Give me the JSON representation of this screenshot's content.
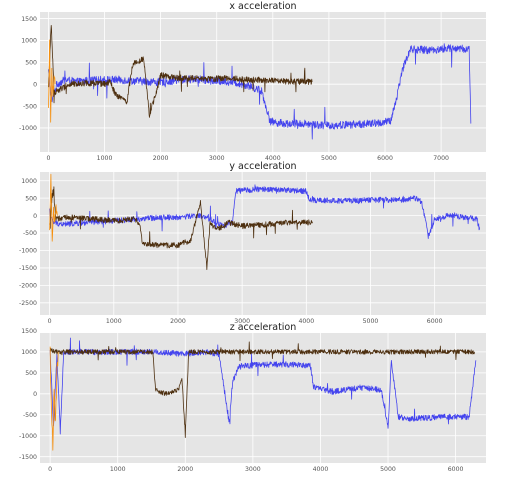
{
  "chart_data": [
    {
      "type": "line",
      "title": "x acceleration",
      "xlim": [
        -150,
        7800
      ],
      "ylim": [
        -1550,
        1650
      ],
      "xticks": [
        0,
        1000,
        2000,
        3000,
        4000,
        5000,
        6000,
        7000
      ],
      "yticks": [
        1500,
        1000,
        500,
        0,
        -500,
        -1000
      ],
      "grid": true,
      "series": [
        {
          "color": "#4444ee",
          "noise": 90,
          "x": [
            0,
            60,
            150,
            300,
            500,
            700,
            1000,
            1250,
            1500,
            1800,
            2000,
            2300,
            2600,
            2900,
            3200,
            3400,
            3600,
            3800,
            3950,
            4200,
            4600,
            5000,
            5400,
            5800,
            6100,
            6200,
            6300,
            6450,
            6800,
            7200,
            7500,
            7530
          ],
          "y": [
            300,
            -400,
            0,
            100,
            50,
            80,
            100,
            100,
            80,
            60,
            50,
            90,
            120,
            80,
            60,
            20,
            -50,
            -150,
            -850,
            -900,
            -900,
            -950,
            -920,
            -900,
            -850,
            -350,
            300,
            800,
            780,
            820,
            800,
            -900
          ]
        },
        {
          "color": "#4d2f0f",
          "noise": 70,
          "x": [
            0,
            50,
            100,
            150,
            400,
            700,
            1000,
            1100,
            1200,
            1400,
            1500,
            1700,
            1800,
            1900,
            2000,
            2300,
            2600,
            2900,
            3200,
            3500,
            3800,
            4100,
            4400,
            4700
          ],
          "y": [
            -100,
            1400,
            -200,
            -150,
            0,
            30,
            0,
            50,
            -250,
            -400,
            450,
            600,
            -700,
            -300,
            200,
            150,
            130,
            120,
            140,
            110,
            90,
            70,
            60,
            50
          ]
        },
        {
          "color": "#f5900f",
          "noise": 120,
          "x": [
            0,
            20,
            40,
            60,
            80,
            100,
            120
          ],
          "y": [
            -600,
            900,
            -900,
            400,
            -200,
            100,
            0
          ]
        }
      ]
    },
    {
      "type": "line",
      "title": "y acceleration",
      "xlim": [
        -150,
        6800
      ],
      "ylim": [
        -2850,
        1250
      ],
      "xticks": [
        0,
        1000,
        2000,
        3000,
        4000,
        5000,
        6000
      ],
      "yticks": [
        1000,
        500,
        0,
        -500,
        -1000,
        -1500,
        -2000,
        -2500
      ],
      "grid": true,
      "series": [
        {
          "color": "#4444ee",
          "noise": 80,
          "x": [
            0,
            60,
            200,
            600,
            1000,
            1400,
            1700,
            2000,
            2300,
            2500,
            2700,
            2850,
            2900,
            3200,
            3500,
            3800,
            4000,
            4050,
            4500,
            5000,
            5500,
            5700,
            5800,
            5900,
            6000,
            6200,
            6500,
            6660,
            6700
          ],
          "y": [
            0,
            -200,
            -250,
            -200,
            -150,
            -100,
            -50,
            -50,
            0,
            -100,
            -300,
            -200,
            700,
            750,
            750,
            720,
            700,
            450,
            420,
            450,
            450,
            500,
            400,
            -600,
            -100,
            0,
            -50,
            -100,
            -400
          ]
        },
        {
          "color": "#4d2f0f",
          "noise": 80,
          "x": [
            0,
            50,
            100,
            300,
            700,
            1000,
            1300,
            1400,
            1450,
            1700,
            2000,
            2200,
            2350,
            2450,
            2500,
            2600,
            2700,
            2800,
            3000,
            3400,
            3700,
            4000,
            4100
          ],
          "y": [
            -300,
            800,
            -100,
            -50,
            -100,
            -150,
            -100,
            -200,
            -800,
            -850,
            -850,
            -700,
            400,
            -1500,
            -200,
            -400,
            -300,
            -200,
            -300,
            -250,
            -200,
            -200,
            -180
          ]
        },
        {
          "color": "#f5900f",
          "noise": 150,
          "x": [
            0,
            20,
            40,
            60,
            80,
            100,
            120
          ],
          "y": [
            -500,
            1100,
            -700,
            300,
            -200,
            200,
            0
          ]
        }
      ]
    },
    {
      "type": "line",
      "title": "z acceleration",
      "xlim": [
        -150,
        6450
      ],
      "ylim": [
        -1650,
        1450
      ],
      "xticks": [
        0,
        1000,
        2000,
        3000,
        4000,
        5000,
        6000
      ],
      "yticks": [
        1500,
        1000,
        500,
        0,
        -500,
        -1000,
        -1500
      ],
      "grid": true,
      "series": [
        {
          "color": "#4444ee",
          "noise": 70,
          "x": [
            0,
            50,
            100,
            150,
            200,
            500,
            1000,
            1500,
            2000,
            2300,
            2500,
            2650,
            2700,
            2800,
            3000,
            3300,
            3600,
            3850,
            3900,
            4200,
            4600,
            4900,
            5000,
            5050,
            5150,
            5300,
            5800,
            6200,
            6300
          ],
          "y": [
            1000,
            -800,
            900,
            -900,
            1000,
            1000,
            1000,
            1000,
            950,
            1000,
            950,
            -700,
            300,
            650,
            680,
            700,
            700,
            680,
            150,
            50,
            150,
            100,
            -800,
            800,
            -550,
            -600,
            -550,
            -550,
            800
          ]
        },
        {
          "color": "#4d2f0f",
          "noise": 55,
          "x": [
            0,
            100,
            500,
            1000,
            1400,
            1520,
            1560,
            1700,
            1900,
            1950,
            2000,
            2050,
            2400,
            3000,
            3500,
            4000,
            4500,
            5000,
            5500,
            6000,
            6280
          ],
          "y": [
            1050,
            1000,
            1000,
            1000,
            1000,
            1000,
            100,
            0,
            100,
            400,
            -1000,
            1000,
            1000,
            1000,
            1000,
            1000,
            1000,
            1000,
            1000,
            1000,
            1000
          ]
        },
        {
          "color": "#f5900f",
          "noise": 200,
          "x": [
            0,
            20,
            40,
            60,
            80,
            100,
            120
          ],
          "y": [
            1000,
            -500,
            -1200,
            200,
            -800,
            500,
            1000
          ]
        }
      ]
    }
  ]
}
